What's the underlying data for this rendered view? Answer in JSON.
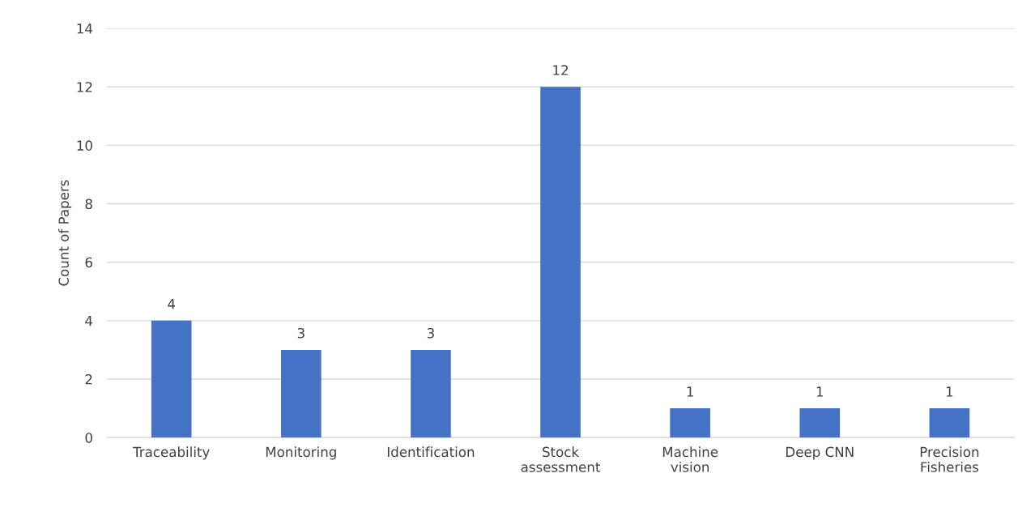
{
  "chart_data": {
    "type": "bar",
    "ylabel": "Count of Papers",
    "categories": [
      "Traceability",
      "Monitoring",
      "Identification",
      "Stock\nassessment",
      "Machine\nvision",
      "Deep CNN",
      "Precision\nFisheries"
    ],
    "values": [
      4,
      3,
      3,
      12,
      1,
      1,
      1
    ],
    "color": "#4472c4",
    "ylim": [
      0,
      14
    ],
    "yticks": [
      0,
      2,
      4,
      6,
      8,
      10,
      12,
      14
    ],
    "grid": "y",
    "data_labels": true
  }
}
